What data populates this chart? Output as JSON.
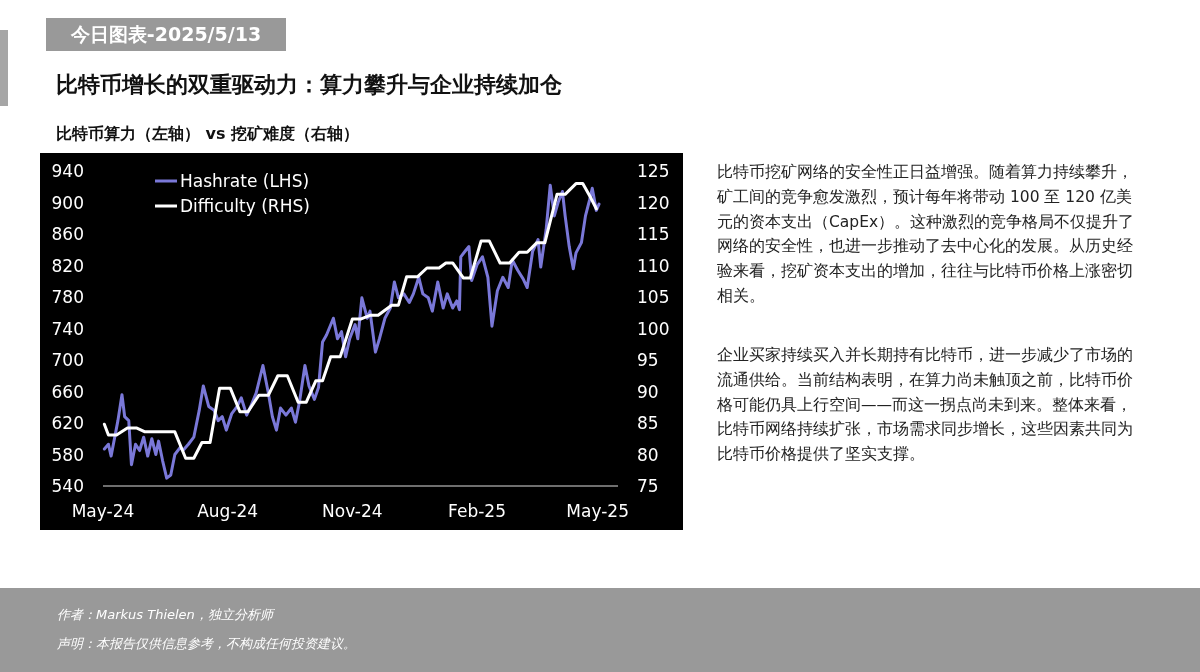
{
  "chart_data": {
    "type": "line",
    "title": "比特币增长的双重驱动力：算力攀升与企业持续加仓",
    "subtitle": "比特币算力（左轴） vs 挖矿难度（右轴）",
    "annotations": [
      "今日图表-2025/5/13",
      "比特币挖矿网络的安全性正日益增强。随着算力持续攀升，矿工间的竞争愈发激烈，预计每年将带动 100 至 120 亿美元的资本支出（CapEx）。这种激烈的竞争格局不仅提升了网络的安全性，也进一步推动了去中心化的发展。从历史经验来看，挖矿资本支出的增加，往往与比特币价格上涨密切相关。",
      "企业买家持续买入并长期持有比特币，进一步减少了市场的流通供给。当前结构表明，在算力尚未触顶之前，比特币价格可能仍具上行空间——而这一拐点尚未到来。整体来看，比特币网络持续扩张，市场需求同步增长，这些因素共同为比特币价格提供了坚实支撑。",
      "作者：Markus Thielen，独立分析师",
      "声明：本报告仅供信息参考，不构成任何投资建议。"
    ],
    "xlim": [
      "2024-05-01",
      "2025-05-16"
    ],
    "xticks": [
      {
        "value": "2024-05-01",
        "label": "May-24"
      },
      {
        "value": "2024-08-01",
        "label": "Aug-24"
      },
      {
        "value": "2024-11-01",
        "label": "Nov-24"
      },
      {
        "value": "2025-02-01",
        "label": "Feb-25"
      },
      {
        "value": "2025-05-01",
        "label": "May-25"
      }
    ],
    "ylim": [
      540,
      940
    ],
    "yticks": [
      540,
      580,
      620,
      660,
      700,
      740,
      780,
      820,
      860,
      900,
      940
    ],
    "y2lim": [
      75,
      125
    ],
    "y2ticks": [
      75,
      80,
      85,
      90,
      95,
      100,
      105,
      110,
      115,
      120,
      125
    ],
    "grid": false,
    "legend": "top left",
    "series": [
      {
        "name": "Hashrate (LHS)",
        "color": "#7a78d8",
        "x": [
          "2024-05-02",
          "2024-05-05",
          "2024-05-07",
          "2024-05-12",
          "2024-05-15",
          "2024-05-17",
          "2024-05-20",
          "2024-05-22",
          "2024-05-25",
          "2024-05-28",
          "2024-05-31",
          "2024-06-03",
          "2024-06-06",
          "2024-06-09",
          "2024-06-11",
          "2024-06-14",
          "2024-06-17",
          "2024-06-20",
          "2024-06-23",
          "2024-06-27",
          "2024-06-29",
          "2024-07-03",
          "2024-07-07",
          "2024-07-11",
          "2024-07-14",
          "2024-07-18",
          "2024-07-22",
          "2024-07-25",
          "2024-07-28",
          "2024-07-31",
          "2024-08-04",
          "2024-08-08",
          "2024-08-11",
          "2024-08-15",
          "2024-08-18",
          "2024-08-22",
          "2024-08-27",
          "2024-08-31",
          "2024-09-03",
          "2024-09-06",
          "2024-09-09",
          "2024-09-13",
          "2024-09-17",
          "2024-09-20",
          "2024-09-23",
          "2024-09-27",
          "2024-09-30",
          "2024-10-04",
          "2024-10-07",
          "2024-10-10",
          "2024-10-13",
          "2024-10-18",
          "2024-10-21",
          "2024-10-24",
          "2024-10-27",
          "2024-10-30",
          "2024-11-03",
          "2024-11-05",
          "2024-11-08",
          "2024-11-12",
          "2024-11-14",
          "2024-11-18",
          "2024-11-21",
          "2024-11-25",
          "2024-11-29",
          "2024-12-02",
          "2024-12-05",
          "2024-12-09",
          "2024-12-13",
          "2024-12-16",
          "2024-12-20",
          "2024-12-23",
          "2024-12-27",
          "2024-12-30",
          "2025-01-03",
          "2025-01-07",
          "2025-01-10",
          "2025-01-14",
          "2025-01-17",
          "2025-01-19",
          "2025-01-20",
          "2025-01-24",
          "2025-01-26",
          "2025-01-28",
          "2025-02-01",
          "2025-02-05",
          "2025-02-09",
          "2025-02-12",
          "2025-02-16",
          "2025-02-20",
          "2025-02-24",
          "2025-02-27",
          "2025-03-03",
          "2025-03-07",
          "2025-03-10",
          "2025-03-14",
          "2025-03-18",
          "2025-03-20",
          "2025-03-24",
          "2025-03-27",
          "2025-03-30",
          "2025-04-02",
          "2025-04-05",
          "2025-04-07",
          "2025-04-10",
          "2025-04-13",
          "2025-04-15",
          "2025-04-19",
          "2025-04-22",
          "2025-04-25",
          "2025-04-27",
          "2025-04-30",
          "2025-05-02"
        ],
        "values": [
          587,
          593,
          578,
          623,
          656,
          628,
          623,
          567,
          593,
          585,
          602,
          578,
          600,
          580,
          597,
          572,
          550,
          554,
          580,
          589,
          585,
          593,
          602,
          636,
          667,
          641,
          636,
          623,
          628,
          611,
          632,
          641,
          652,
          630,
          641,
          658,
          693,
          658,
          628,
          611,
          639,
          630,
          639,
          621,
          647,
          693,
          667,
          650,
          665,
          723,
          732,
          753,
          727,
          736,
          704,
          727,
          745,
          727,
          779,
          753,
          762,
          710,
          727,
          753,
          766,
          799,
          779,
          784,
          773,
          784,
          805,
          784,
          779,
          762,
          799,
          766,
          784,
          766,
          775,
          764,
          831,
          840,
          844,
          801,
          821,
          831,
          805,
          743,
          788,
          805,
          792,
          827,
          814,
          803,
          792,
          838,
          853,
          818,
          866,
          922,
          883,
          901,
          914,
          883,
          844,
          816,
          836,
          849,
          883,
          903,
          918,
          890,
          898
        ]
      },
      {
        "name": "Difficulty (RHS)",
        "color": "#ffffff",
        "axis": "y2",
        "x": [
          "2024-05-02",
          "2024-05-05",
          "2024-05-11",
          "2024-05-19",
          "2024-05-26",
          "2024-06-01",
          "2024-06-23",
          "2024-07-01",
          "2024-07-07",
          "2024-07-13",
          "2024-07-19",
          "2024-07-26",
          "2024-08-03",
          "2024-08-10",
          "2024-08-16",
          "2024-08-24",
          "2024-08-31",
          "2024-09-07",
          "2024-09-14",
          "2024-09-22",
          "2024-09-28",
          "2024-10-05",
          "2024-10-10",
          "2024-10-16",
          "2024-10-23",
          "2024-11-01",
          "2024-11-07",
          "2024-11-14",
          "2024-11-20",
          "2024-11-30",
          "2024-12-05",
          "2024-12-11",
          "2024-12-19",
          "2024-12-26",
          "2025-01-04",
          "2025-01-09",
          "2025-01-14",
          "2025-01-22",
          "2025-01-27",
          "2025-02-04",
          "2025-02-10",
          "2025-02-18",
          "2025-02-25",
          "2025-03-04",
          "2025-03-10",
          "2025-03-17",
          "2025-03-23",
          "2025-04-01",
          "2025-04-07",
          "2025-04-15",
          "2025-04-20",
          "2025-04-26",
          "2025-04-30"
        ],
        "values": [
          84.8,
          83.1,
          83.1,
          84.2,
          84.2,
          83.6,
          83.6,
          79.4,
          79.4,
          81.9,
          81.9,
          90.5,
          90.5,
          86.8,
          86.8,
          89.4,
          89.4,
          92.5,
          92.5,
          88.3,
          88.3,
          91.7,
          91.7,
          95.5,
          95.5,
          101.5,
          101.5,
          102.1,
          102.1,
          103.7,
          103.7,
          108.2,
          108.2,
          109.6,
          109.6,
          110.4,
          110.4,
          108.0,
          108.0,
          113.9,
          113.9,
          110.4,
          110.4,
          112.1,
          112.1,
          113.6,
          113.6,
          121.3,
          121.3,
          123.0,
          123.0,
          120.7,
          119.0
        ]
      }
    ]
  }
}
